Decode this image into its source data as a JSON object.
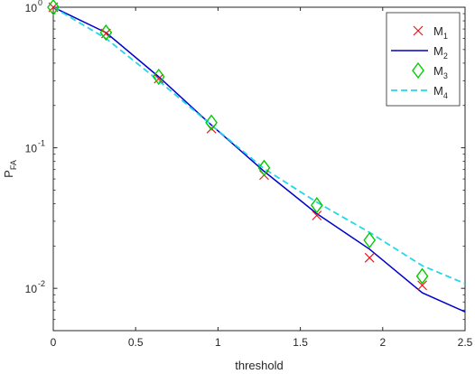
{
  "chart_data": {
    "type": "line",
    "xlabel": "threshold",
    "ylabel": "P",
    "ylabel_sub": "FA",
    "xscale": "linear",
    "yscale": "log",
    "xlim": [
      0,
      2.5
    ],
    "ylim": [
      0.005,
      1
    ],
    "grid": false,
    "legend_position": "top-right",
    "x_ticks": [
      0,
      0.5,
      1,
      1.5,
      2,
      2.5
    ],
    "x_tick_labels": [
      "0",
      "0.5",
      "1",
      "1.5",
      "2",
      "2.5"
    ],
    "y_ticks": [
      0.01,
      0.1,
      1
    ],
    "y_tick_labels": [
      {
        "base": "10",
        "exp": "-2"
      },
      {
        "base": "10",
        "exp": "-1"
      },
      {
        "base": "10",
        "exp": "0"
      }
    ],
    "series": [
      {
        "name": "M",
        "name_sub": "1",
        "style": "markers-x",
        "color": "#e41a1c",
        "x": [
          0,
          0.32,
          0.64,
          0.96,
          1.28,
          1.6,
          1.92,
          2.24
        ],
        "y": [
          1.0,
          0.65,
          0.31,
          0.137,
          0.064,
          0.033,
          0.0165,
          0.0105
        ]
      },
      {
        "name": "M",
        "name_sub": "2",
        "style": "solid-line",
        "color": "#0000cc",
        "x": [
          0,
          0.32,
          0.64,
          0.96,
          1.28,
          1.6,
          1.92,
          2.24,
          2.5
        ],
        "y": [
          1.0,
          0.66,
          0.32,
          0.145,
          0.068,
          0.034,
          0.019,
          0.0093,
          0.0068
        ]
      },
      {
        "name": "M",
        "name_sub": "3",
        "style": "markers-diamond",
        "color": "#00cc00",
        "x": [
          0,
          0.32,
          0.64,
          0.96,
          1.28,
          1.6,
          1.92,
          2.24
        ],
        "y": [
          1.0,
          0.66,
          0.32,
          0.151,
          0.072,
          0.039,
          0.022,
          0.0122
        ]
      },
      {
        "name": "M",
        "name_sub": "4",
        "style": "dashed-line",
        "color": "#22d8e8",
        "x": [
          0,
          0.32,
          0.64,
          0.96,
          1.28,
          1.6,
          1.92,
          2.24,
          2.5
        ],
        "y": [
          1.0,
          0.6,
          0.3,
          0.145,
          0.071,
          0.041,
          0.025,
          0.0145,
          0.0108
        ]
      }
    ]
  }
}
